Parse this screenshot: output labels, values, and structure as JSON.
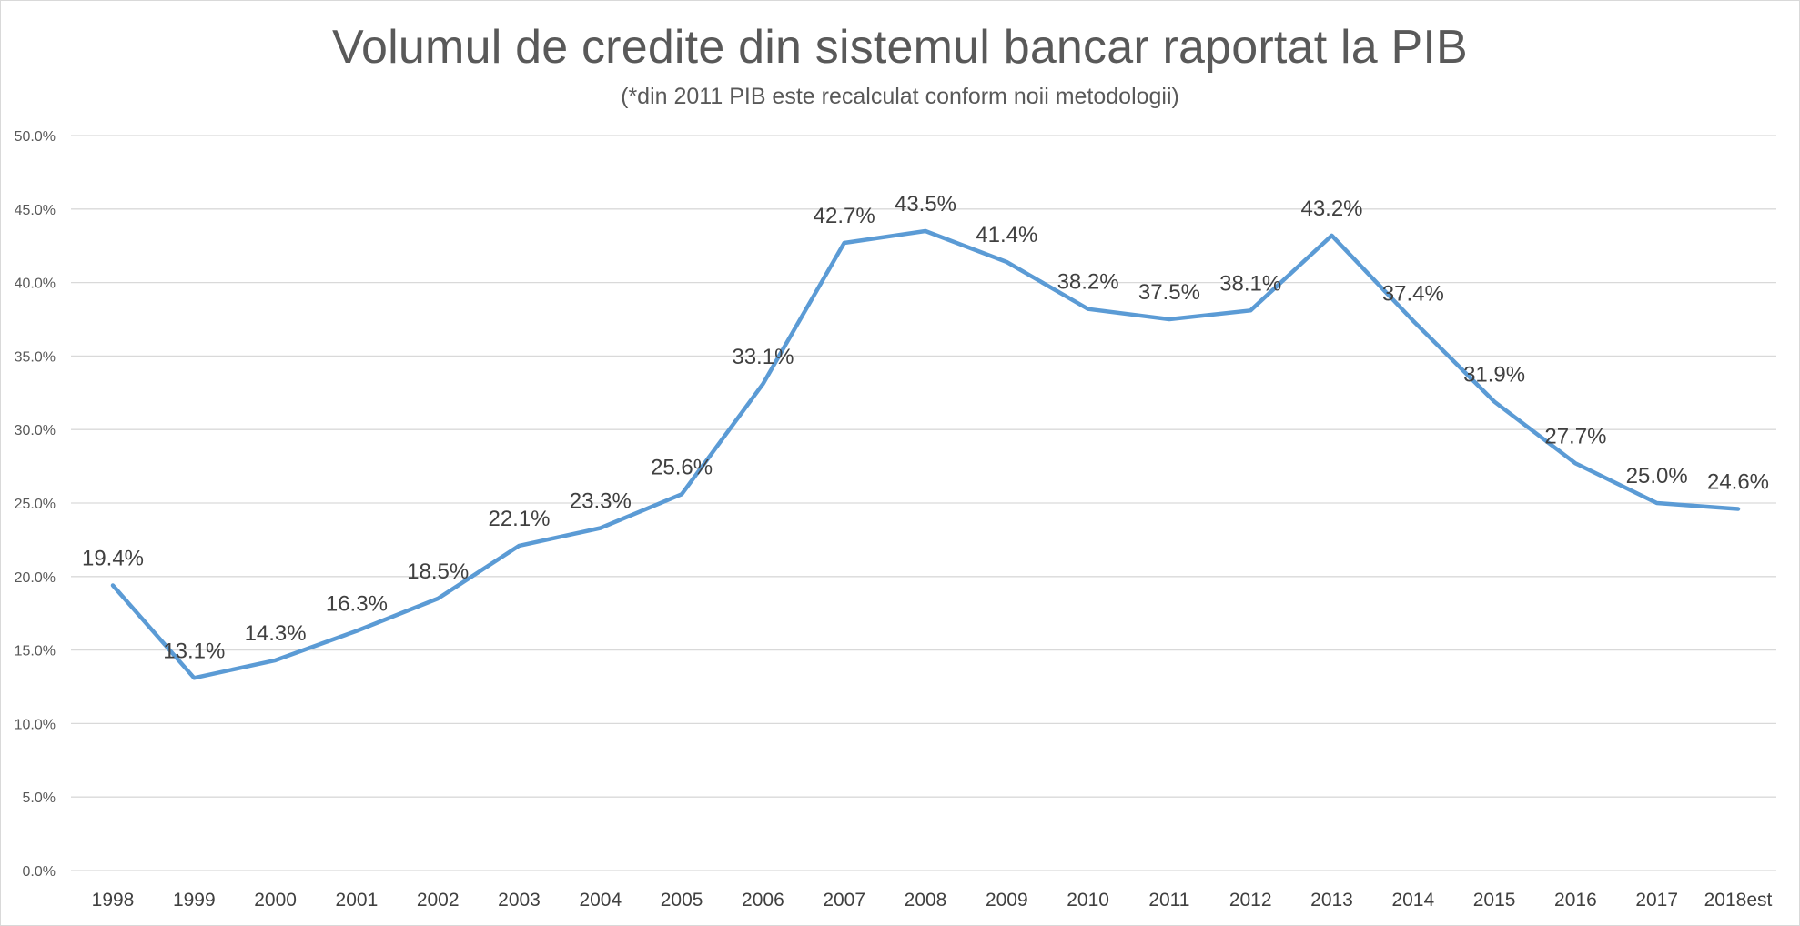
{
  "chart_data": {
    "type": "line",
    "title": "Volumul de credite din sistemul bancar raportat la PIB",
    "subtitle": "(*din 2011 PIB este recalculat conform noii metodologii)",
    "xlabel": "",
    "ylabel": "",
    "categories": [
      "1998",
      "1999",
      "2000",
      "2001",
      "2002",
      "2003",
      "2004",
      "2005",
      "2006",
      "2007",
      "2008",
      "2009",
      "2010",
      "2011",
      "2012",
      "2013",
      "2014",
      "2015",
      "2016",
      "2017",
      "2018est"
    ],
    "series": [
      {
        "values": [
          19.4,
          13.1,
          14.3,
          16.3,
          18.5,
          22.1,
          23.3,
          25.6,
          33.1,
          42.7,
          43.5,
          41.4,
          38.2,
          37.5,
          38.1,
          43.2,
          37.4,
          31.9,
          27.7,
          25.0,
          24.6
        ],
        "data_labels": [
          "19.4%",
          "13.1%",
          "14.3%",
          "16.3%",
          "18.5%",
          "22.1%",
          "23.3%",
          "25.6%",
          "33.1%",
          "42.7%",
          "43.5%",
          "41.4%",
          "38.2%",
          "37.5%",
          "38.1%",
          "43.2%",
          "37.4%",
          "31.9%",
          "27.7%",
          "25.0%",
          "24.6%"
        ],
        "color": "#5b9bd5"
      }
    ],
    "ylim": [
      0,
      50
    ],
    "y_ticks": [
      0,
      5,
      10,
      15,
      20,
      25,
      30,
      35,
      40,
      45,
      50
    ],
    "y_tick_labels": [
      "0.0%",
      "5.0%",
      "10.0%",
      "15.0%",
      "20.0%",
      "25.0%",
      "30.0%",
      "35.0%",
      "40.0%",
      "45.0%",
      "50.0%"
    ],
    "grid": true,
    "legend": "none"
  }
}
